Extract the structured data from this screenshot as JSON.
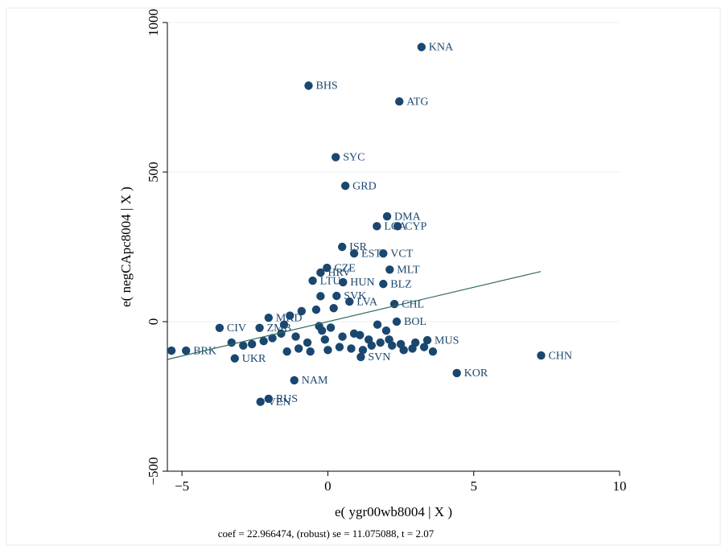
{
  "chart_data": {
    "type": "scatter",
    "xlabel": "e( ygr00wb8004 | X )",
    "ylabel": "e( negCApc8004 | X )",
    "note": "coef = 22.966474, (robust) se = 11.075088, t = 2.07",
    "xlim": [
      -5.5,
      10
    ],
    "ylim": [
      -500,
      1000
    ],
    "xticks": [
      {
        "value": -5,
        "label": "−5"
      },
      0,
      5,
      10
    ],
    "yticks": [
      {
        "value": -500,
        "label": "−500"
      },
      0,
      500,
      1000
    ],
    "grid": true,
    "series": [
      {
        "color": "#1a476f",
        "x": [
          3.21,
          -0.66,
          2.45,
          0.27,
          0.6,
          2.03,
          1.68,
          2.39,
          0.49,
          0.9,
          1.9,
          2.12,
          -0.03,
          -0.25,
          -0.52,
          0.52,
          1.9,
          0.3,
          0.74,
          2.28,
          2.36,
          -2.03,
          -3.71,
          -2.34,
          -3.19,
          -1.15,
          -2.03,
          -2.31,
          7.31,
          4.42,
          1.13,
          -5.36,
          -4.86,
          3.41,
          -0.25,
          0.2,
          -0.4,
          -0.9,
          -1.3,
          -1.6,
          -1.9,
          -2.2,
          -2.6,
          -2.9,
          -3.3,
          -1.0,
          -0.6,
          0.0,
          0.4,
          0.8,
          1.2,
          1.5,
          1.8,
          2.1,
          2.5,
          2.9,
          3.3,
          3.6,
          -0.2,
          -1.1,
          -1.5,
          0.1,
          0.9,
          1.4,
          2.0,
          2.6,
          -0.7,
          -0.1,
          0.5,
          1.1,
          -1.4,
          -0.3,
          3.0,
          2.2,
          1.7
        ],
        "y": [
          918,
          789,
          736,
          550,
          454,
          352,
          319,
          319,
          250,
          228,
          228,
          174,
          180,
          164,
          137,
          132,
          126,
          86,
          67,
          59,
          0,
          13,
          -21,
          -21,
          -123,
          -196,
          -258,
          -268,
          -113,
          -172,
          -118,
          -97,
          -97,
          -62,
          85,
          45,
          40,
          35,
          20,
          -40,
          -55,
          -65,
          -75,
          -80,
          -70,
          -90,
          -100,
          -95,
          -85,
          -90,
          -95,
          -80,
          -70,
          -60,
          -75,
          -90,
          -85,
          -100,
          -30,
          -50,
          -10,
          -20,
          -40,
          -60,
          -30,
          -95,
          -70,
          -60,
          -50,
          -45,
          -100,
          -15,
          -70,
          -80,
          -10
        ],
        "labels": [
          "KNA",
          "BHS",
          "ATG",
          "SYC",
          "GRD",
          "DMA",
          "LCA",
          "CYP",
          "ISR",
          "EST",
          "VCT",
          "MLT",
          "CZE",
          "HRV",
          "LTU",
          "HUN",
          "BLZ",
          "SVK",
          "LVA",
          "CHL",
          "BOL",
          "MKD",
          "CIV",
          "ZMB",
          "UKR",
          "NAM",
          "RUS",
          "VEN",
          "CHN",
          "KOR",
          "SVN",
          null,
          "BRK",
          "MUS",
          null,
          null,
          null,
          null,
          null,
          null,
          null,
          null,
          null,
          null,
          null,
          null,
          null,
          null,
          null,
          null,
          null,
          null,
          null,
          null,
          null,
          null,
          null,
          null,
          null,
          null,
          null,
          null,
          null,
          null,
          null,
          null,
          null,
          null,
          null,
          null,
          null,
          null,
          null,
          null,
          null
        ]
      }
    ],
    "fit": {
      "color": "#2e6b5e",
      "x": [
        -5.5,
        7.3
      ],
      "y": [
        -126.3,
        167.6
      ]
    }
  }
}
